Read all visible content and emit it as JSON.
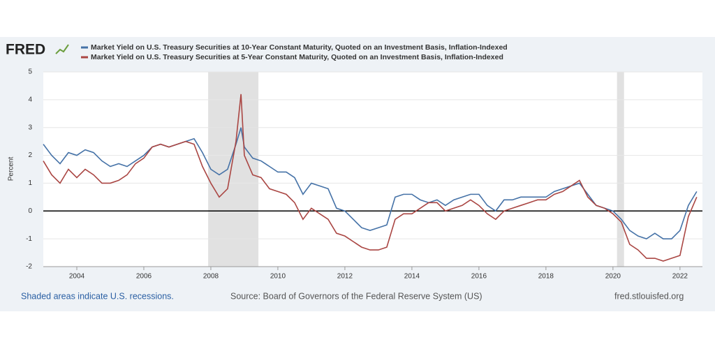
{
  "chart_data": {
    "type": "line",
    "logo": "FRED",
    "ylabel": "Percent",
    "x": [
      2003.0,
      2003.25,
      2003.5,
      2003.75,
      2004.0,
      2004.25,
      2004.5,
      2004.75,
      2005.0,
      2005.25,
      2005.5,
      2005.75,
      2006.0,
      2006.25,
      2006.5,
      2006.75,
      2007.0,
      2007.25,
      2007.5,
      2007.75,
      2008.0,
      2008.25,
      2008.5,
      2008.75,
      2008.9,
      2009.0,
      2009.25,
      2009.5,
      2009.75,
      2010.0,
      2010.25,
      2010.5,
      2010.75,
      2011.0,
      2011.25,
      2011.5,
      2011.75,
      2012.0,
      2012.25,
      2012.5,
      2012.75,
      2013.0,
      2013.25,
      2013.5,
      2013.75,
      2014.0,
      2014.25,
      2014.5,
      2014.75,
      2015.0,
      2015.25,
      2015.5,
      2015.75,
      2016.0,
      2016.25,
      2016.5,
      2016.75,
      2017.0,
      2017.25,
      2017.5,
      2017.75,
      2018.0,
      2018.25,
      2018.5,
      2018.75,
      2019.0,
      2019.25,
      2019.5,
      2019.75,
      2020.0,
      2020.25,
      2020.5,
      2020.75,
      2021.0,
      2021.25,
      2021.5,
      2021.75,
      2022.0,
      2022.25,
      2022.5
    ],
    "series": [
      {
        "name": "Market Yield on U.S. Treasury Securities at 10-Year Constant Maturity, Quoted on an Investment Basis, Inflation-Indexed",
        "color": "#4572a7",
        "values": [
          2.4,
          2.0,
          1.7,
          2.1,
          2.0,
          2.2,
          2.1,
          1.8,
          1.6,
          1.7,
          1.6,
          1.8,
          2.0,
          2.3,
          2.4,
          2.3,
          2.4,
          2.5,
          2.6,
          2.1,
          1.5,
          1.3,
          1.5,
          2.4,
          3.0,
          2.3,
          1.9,
          1.8,
          1.6,
          1.4,
          1.4,
          1.2,
          0.6,
          1.0,
          0.9,
          0.8,
          0.1,
          0.0,
          -0.3,
          -0.6,
          -0.7,
          -0.6,
          -0.5,
          0.5,
          0.6,
          0.6,
          0.4,
          0.3,
          0.4,
          0.2,
          0.4,
          0.5,
          0.6,
          0.6,
          0.2,
          0.0,
          0.4,
          0.4,
          0.5,
          0.5,
          0.5,
          0.5,
          0.7,
          0.8,
          0.9,
          1.0,
          0.6,
          0.2,
          0.1,
          0.0,
          -0.3,
          -0.7,
          -0.9,
          -1.0,
          -0.8,
          -1.0,
          -1.0,
          -0.7,
          0.2,
          0.7
        ]
      },
      {
        "name": "Market Yield on U.S. Treasury Securities at 5-Year Constant Maturity, Quoted on an Investment Basis, Inflation-Indexed",
        "color": "#aa4643",
        "values": [
          1.8,
          1.3,
          1.0,
          1.5,
          1.2,
          1.5,
          1.3,
          1.0,
          1.0,
          1.1,
          1.3,
          1.7,
          1.9,
          2.3,
          2.4,
          2.3,
          2.4,
          2.5,
          2.4,
          1.6,
          1.0,
          0.5,
          0.8,
          2.5,
          4.2,
          2.0,
          1.3,
          1.2,
          0.8,
          0.7,
          0.6,
          0.3,
          -0.3,
          0.1,
          -0.1,
          -0.3,
          -0.8,
          -0.9,
          -1.1,
          -1.3,
          -1.4,
          -1.4,
          -1.3,
          -0.3,
          -0.1,
          -0.1,
          0.1,
          0.3,
          0.3,
          0.0,
          0.1,
          0.2,
          0.4,
          0.2,
          -0.1,
          -0.3,
          0.0,
          0.1,
          0.2,
          0.3,
          0.4,
          0.4,
          0.6,
          0.7,
          0.9,
          1.1,
          0.5,
          0.2,
          0.1,
          -0.1,
          -0.4,
          -1.2,
          -1.4,
          -1.7,
          -1.7,
          -1.8,
          -1.7,
          -1.6,
          -0.2,
          0.5
        ]
      }
    ],
    "recessions": [
      [
        2007.92,
        2009.42
      ],
      [
        2020.12,
        2020.33
      ]
    ],
    "xlim": [
      2003,
      2022.67
    ],
    "xticks": [
      2004,
      2006,
      2008,
      2010,
      2012,
      2014,
      2016,
      2018,
      2020,
      2022
    ],
    "ylim": [
      -2,
      5
    ],
    "yticks": [
      -2,
      -1,
      0,
      1,
      2,
      3,
      4,
      5
    ],
    "grid": true
  },
  "footer": {
    "note": "Shaded areas indicate U.S. recessions.",
    "source": "Source: Board of Governors of the Federal Reserve System (US)",
    "site": "fred.stlouisfed.org"
  }
}
